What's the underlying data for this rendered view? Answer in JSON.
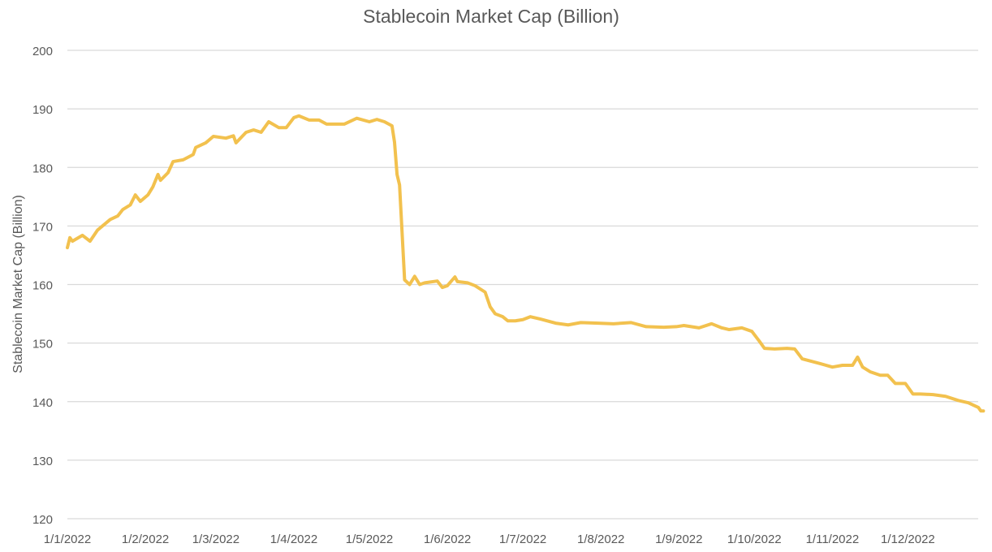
{
  "chart_data": {
    "type": "line",
    "title": "Stablecoin Market Cap (Billion)",
    "xlabel": "",
    "ylabel": "Stablecoin Market Cap (Billion)",
    "ylim": [
      120,
      200
    ],
    "yticks": [
      120,
      130,
      140,
      150,
      160,
      170,
      180,
      190,
      200
    ],
    "grid": true,
    "x_unit": "day of 2022 (0 = 1 Jan)",
    "xticks": [
      {
        "day": 0,
        "label": "1/1/2022"
      },
      {
        "day": 31,
        "label": "1/2/2022"
      },
      {
        "day": 59,
        "label": "1/3/2022"
      },
      {
        "day": 90,
        "label": "1/4/2022"
      },
      {
        "day": 120,
        "label": "1/5/2022"
      },
      {
        "day": 151,
        "label": "1/6/2022"
      },
      {
        "day": 181,
        "label": "1/7/2022"
      },
      {
        "day": 212,
        "label": "1/8/2022"
      },
      {
        "day": 243,
        "label": "1/9/2022"
      },
      {
        "day": 273,
        "label": "1/10/2022"
      },
      {
        "day": 304,
        "label": "1/11/2022"
      },
      {
        "day": 334,
        "label": "1/12/2022"
      }
    ],
    "series": [
      {
        "name": "Stablecoin Market Cap",
        "color": "#F2C14E",
        "points": [
          [
            0,
            166.3
          ],
          [
            1,
            168
          ],
          [
            2,
            167.4
          ],
          [
            6,
            168.4
          ],
          [
            9,
            167.4
          ],
          [
            12,
            169.3
          ],
          [
            17,
            171.1
          ],
          [
            20,
            171.7
          ],
          [
            22,
            172.8
          ],
          [
            25,
            173.6
          ],
          [
            27,
            175.3
          ],
          [
            29,
            174.2
          ],
          [
            32,
            175.3
          ],
          [
            34,
            176.7
          ],
          [
            36,
            178.8
          ],
          [
            37,
            177.8
          ],
          [
            40,
            179.1
          ],
          [
            42,
            181
          ],
          [
            46,
            181.3
          ],
          [
            50,
            182.2
          ],
          [
            51,
            183.4
          ],
          [
            55,
            184.2
          ],
          [
            58,
            185.3
          ],
          [
            63,
            185
          ],
          [
            66,
            185.4
          ],
          [
            67,
            184.2
          ],
          [
            71,
            186
          ],
          [
            74,
            186.4
          ],
          [
            77,
            186
          ],
          [
            80,
            187.8
          ],
          [
            84,
            186.8
          ],
          [
            87,
            186.8
          ],
          [
            90,
            188.5
          ],
          [
            92,
            188.8
          ],
          [
            96,
            188.1
          ],
          [
            100,
            188.1
          ],
          [
            103,
            187.4
          ],
          [
            110,
            187.4
          ],
          [
            115,
            188.4
          ],
          [
            120,
            187.8
          ],
          [
            123,
            188.2
          ],
          [
            126,
            187.8
          ],
          [
            129,
            187.1
          ],
          [
            130,
            184.3
          ],
          [
            131,
            178.8
          ],
          [
            132,
            177
          ],
          [
            134,
            160.8
          ],
          [
            136,
            160
          ],
          [
            138,
            161.4
          ],
          [
            140,
            160
          ],
          [
            142,
            160.3
          ],
          [
            147,
            160.6
          ],
          [
            149,
            159.5
          ],
          [
            151,
            159.8
          ],
          [
            154,
            161.3
          ],
          [
            155,
            160.5
          ],
          [
            159,
            160.3
          ],
          [
            162,
            159.8
          ],
          [
            166,
            158.7
          ],
          [
            168,
            156.2
          ],
          [
            170,
            155
          ],
          [
            173,
            154.5
          ],
          [
            175,
            153.8
          ],
          [
            178,
            153.8
          ],
          [
            181,
            154
          ],
          [
            184,
            154.5
          ],
          [
            188,
            154.1
          ],
          [
            194,
            153.4
          ],
          [
            199,
            153.1
          ],
          [
            204,
            153.5
          ],
          [
            211,
            153.4
          ],
          [
            217,
            153.3
          ],
          [
            224,
            153.5
          ],
          [
            230,
            152.8
          ],
          [
            237,
            152.7
          ],
          [
            242,
            152.8
          ],
          [
            245,
            153
          ],
          [
            251,
            152.6
          ],
          [
            256,
            153.3
          ],
          [
            260,
            152.6
          ],
          [
            263,
            152.3
          ],
          [
            268,
            152.6
          ],
          [
            272,
            152
          ],
          [
            275,
            150.3
          ],
          [
            277,
            149.1
          ],
          [
            281,
            149
          ],
          [
            286,
            149.1
          ],
          [
            289,
            149
          ],
          [
            292,
            147.3
          ],
          [
            299,
            146.5
          ],
          [
            304,
            145.9
          ],
          [
            308,
            146.2
          ],
          [
            312,
            146.2
          ],
          [
            314,
            147.6
          ],
          [
            316,
            145.9
          ],
          [
            319,
            145.1
          ],
          [
            323,
            144.5
          ],
          [
            326,
            144.5
          ],
          [
            329,
            143.1
          ],
          [
            333,
            143.1
          ],
          [
            336,
            141.3
          ],
          [
            339,
            141.3
          ],
          [
            344,
            141.2
          ],
          [
            349,
            140.9
          ],
          [
            354,
            140.2
          ],
          [
            358,
            139.8
          ],
          [
            362,
            139
          ],
          [
            363,
            138.4
          ],
          [
            364,
            138.4
          ]
        ]
      }
    ]
  }
}
